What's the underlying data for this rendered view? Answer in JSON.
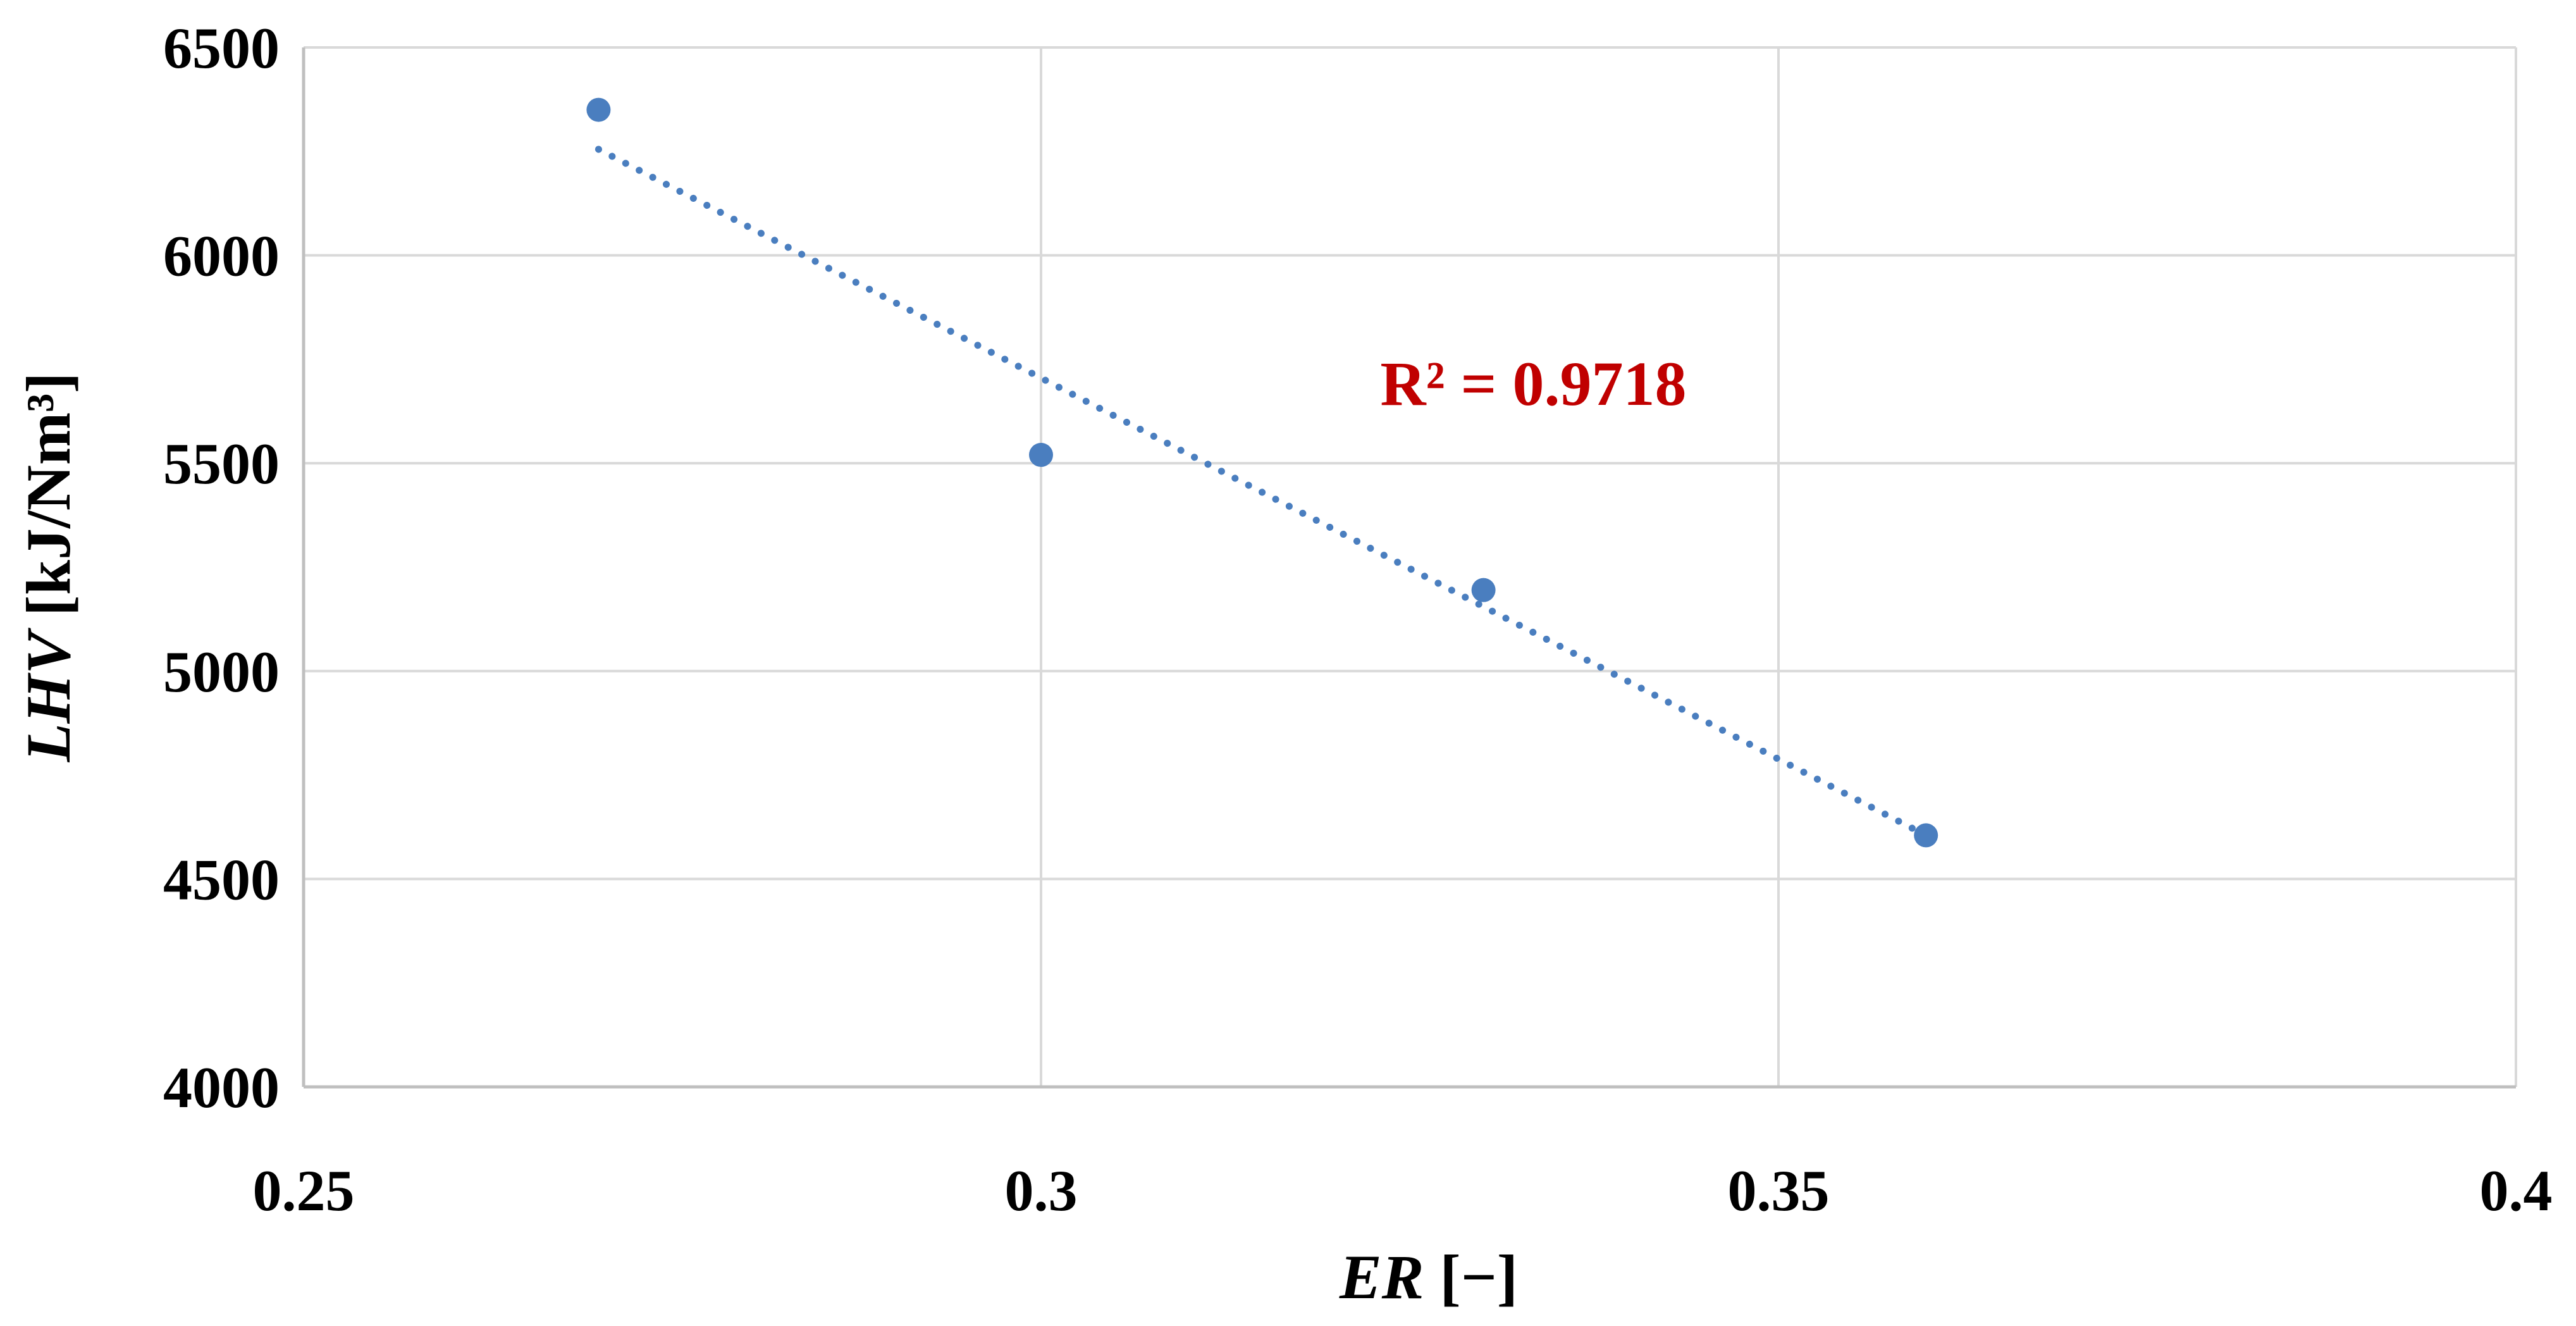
{
  "chart_data": {
    "type": "scatter",
    "x_axis": {
      "label_italic": "ER",
      "label_rest": " [−]",
      "min": 0.25,
      "max": 0.4,
      "ticks": [
        0.25,
        0.3,
        0.35,
        0.4
      ],
      "tick_labels": [
        "0.25",
        "0.3",
        "0.35",
        "0.4"
      ]
    },
    "y_axis": {
      "label_italic": "LHV",
      "label_rest": " [kJ/Nm³]",
      "min": 4000,
      "max": 6500,
      "ticks": [
        4000,
        4500,
        5000,
        5500,
        6000,
        6500
      ],
      "tick_labels": [
        "4000",
        "4500",
        "5000",
        "5500",
        "6000",
        "6500"
      ]
    },
    "series": [
      {
        "points": [
          {
            "x": 0.27,
            "y": 6350
          },
          {
            "x": 0.3,
            "y": 5520
          },
          {
            "x": 0.33,
            "y": 5195
          },
          {
            "x": 0.36,
            "y": 4605
          }
        ]
      }
    ],
    "trendline": {
      "type": "linear",
      "style": "dotted",
      "x_start": 0.27,
      "x_end": 0.36,
      "y_start": 6255,
      "y_end": 4605,
      "r2_text": "R² = 0.9718",
      "r2_anchor": {
        "x": 0.323,
        "y": 5640
      }
    },
    "grid": true,
    "legend": "none",
    "colors": {
      "marker": "#4a7ebf",
      "trendline": "#4a7ebf",
      "r2_text": "#c00000",
      "grid": "#d9d9d9",
      "axis": "#bfbfbf"
    }
  }
}
